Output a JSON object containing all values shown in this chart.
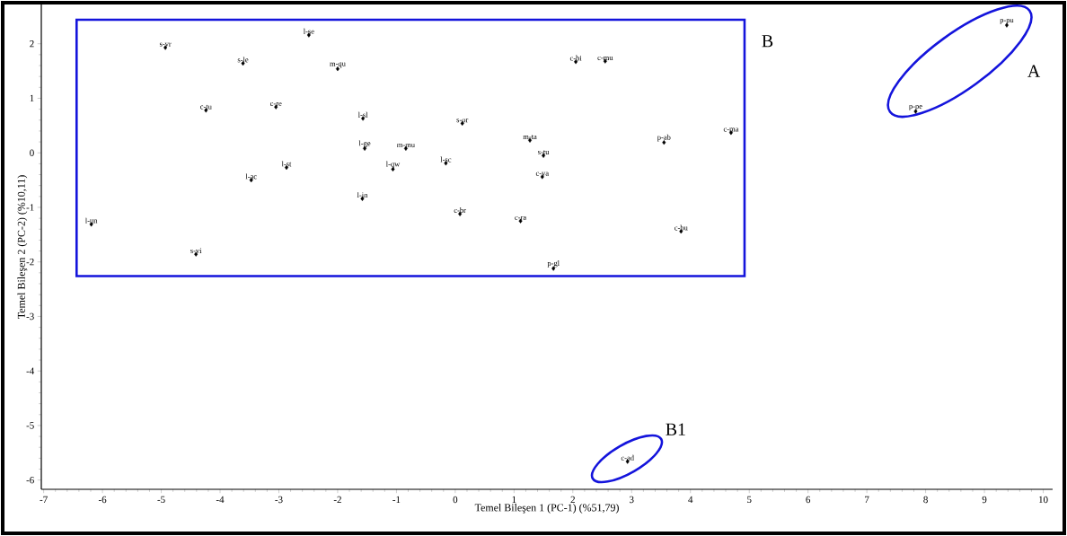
{
  "chart_data": {
    "type": "scatter",
    "xlabel": "Temel Bileşen 1 (PC-1) (%51,79)",
    "ylabel": "Temel Bileşen 2 (PC-2) (%10,11)",
    "x": [
      -4.93,
      -2.49,
      -3.61,
      -2.0,
      -4.24,
      -3.05,
      -1.57,
      -1.54,
      -2.87,
      -3.47,
      -1.58,
      -6.19,
      -4.41,
      -0.84,
      -1.06,
      -0.16,
      0.12,
      0.08,
      1.27,
      1.5,
      1.48,
      1.11,
      1.67,
      2.05,
      2.55,
      3.55,
      4.69,
      3.84,
      9.38,
      7.83,
      2.93
    ],
    "values": [
      1.93,
      2.16,
      1.64,
      1.54,
      0.78,
      0.84,
      0.63,
      0.08,
      -0.27,
      -0.5,
      -0.84,
      -1.31,
      -1.86,
      0.08,
      -0.3,
      -0.19,
      0.54,
      -1.12,
      0.23,
      -0.05,
      -0.44,
      -1.25,
      -2.12,
      1.67,
      1.68,
      0.19,
      0.37,
      -1.44,
      2.34,
      0.76,
      -5.66
    ],
    "color": "#000000",
    "marker": "diamond",
    "xlim": [
      -7.04,
      10.16
    ],
    "ylim": [
      -6.17,
      2.72
    ],
    "xticks": [
      -7,
      -6,
      -5,
      -4,
      -3,
      -2,
      -1,
      0,
      1,
      2,
      3,
      4,
      5,
      6,
      7,
      8,
      9,
      10
    ],
    "yticks": [
      -6,
      -5,
      -4,
      -3,
      -2,
      -1,
      0,
      1,
      2
    ],
    "annotations": [
      {
        "text": "s-vr",
        "x": -4.93,
        "y": 1.93
      },
      {
        "text": "l-se",
        "x": -2.49,
        "y": 2.16
      },
      {
        "text": "s-le",
        "x": -3.61,
        "y": 1.64
      },
      {
        "text": "m-qu",
        "x": -2.0,
        "y": 1.54
      },
      {
        "text": "c-tu",
        "x": -4.24,
        "y": 0.78
      },
      {
        "text": "c-re",
        "x": -3.05,
        "y": 0.84
      },
      {
        "text": "l-sl",
        "x": -1.57,
        "y": 0.63
      },
      {
        "text": "l-ge",
        "x": -1.54,
        "y": 0.08
      },
      {
        "text": "l-st",
        "x": -2.87,
        "y": -0.27
      },
      {
        "text": "l-ac",
        "x": -3.47,
        "y": -0.5
      },
      {
        "text": "l-in",
        "x": -1.58,
        "y": -0.84
      },
      {
        "text": "l-un",
        "x": -6.19,
        "y": -1.31
      },
      {
        "text": "s-vi",
        "x": -4.41,
        "y": -1.86
      },
      {
        "text": "m-mu",
        "x": -0.84,
        "y": 0.08
      },
      {
        "text": "l-qw",
        "x": -1.06,
        "y": -0.3
      },
      {
        "text": "l-sc",
        "x": -0.16,
        "y": -0.19
      },
      {
        "text": "s-or",
        "x": 0.12,
        "y": 0.54
      },
      {
        "text": "c-br",
        "x": 0.08,
        "y": -1.12
      },
      {
        "text": "m-ta",
        "x": 1.27,
        "y": 0.23
      },
      {
        "text": "s-tu",
        "x": 1.5,
        "y": -0.05
      },
      {
        "text": "c-va",
        "x": 1.48,
        "y": -0.44
      },
      {
        "text": "c-ra",
        "x": 1.11,
        "y": -1.25
      },
      {
        "text": "p-gl",
        "x": 1.67,
        "y": -2.12
      },
      {
        "text": "c-bi",
        "x": 2.05,
        "y": 1.67
      },
      {
        "text": "c-mu",
        "x": 2.55,
        "y": 1.68
      },
      {
        "text": "p-ab",
        "x": 3.55,
        "y": 0.19
      },
      {
        "text": "c-ma",
        "x": 4.69,
        "y": 0.37
      },
      {
        "text": "c-bu",
        "x": 3.84,
        "y": -1.44
      },
      {
        "text": "p-pu",
        "x": 9.38,
        "y": 2.34
      },
      {
        "text": "p-pe",
        "x": 7.83,
        "y": 0.76
      },
      {
        "text": "c-ad",
        "x": 2.93,
        "y": -5.66
      },
      "B",
      "A",
      "B1"
    ]
  }
}
